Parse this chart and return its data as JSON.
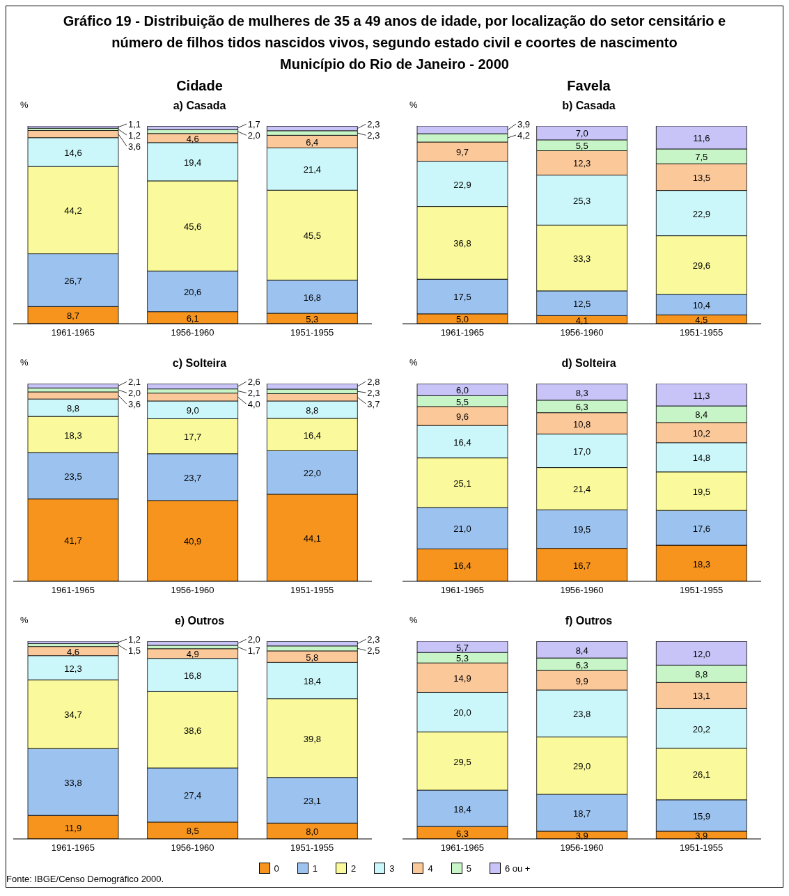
{
  "chart_data": [
    {
      "type": "bar",
      "stacked": true,
      "title": "a) Casada",
      "ylabel": "%",
      "tick_labels": "x",
      "annotations": [
        "Gráfico 19 - Distribuição de mulheres de 35 a 49 anos de idade, por localização do setor censitário e",
        "número de filhos tidos nascidos vivos, segundo estado civil e coortes de nascimento",
        "Município do Rio de Janeiro - 2000",
        "Cidade"
      ],
      "categories": [
        "1961-1965",
        "1956-1960",
        "1951-1955"
      ],
      "series": [
        {
          "color": "#f7941d",
          "values": [
            8.7,
            6.1,
            5.3
          ],
          "value_labels": [
            "8,7",
            "6,1",
            "5,3"
          ]
        },
        {
          "color": "#9cc3f0",
          "values": [
            26.7,
            20.6,
            16.8
          ],
          "value_labels": [
            "26,7",
            "20,6",
            "16,8"
          ]
        },
        {
          "color": "#fafa9c",
          "values": [
            44.2,
            45.6,
            45.5
          ],
          "value_labels": [
            "44,2",
            "45,6",
            "45,5"
          ]
        },
        {
          "color": "#ccf7fa",
          "values": [
            14.6,
            19.4,
            21.4
          ],
          "value_labels": [
            "14,6",
            "19,4",
            "21,4"
          ]
        },
        {
          "color": "#fbc89a",
          "values": [
            3.6,
            4.6,
            6.4
          ],
          "value_labels": [
            "3,6",
            "4,6",
            "6,4"
          ]
        },
        {
          "color": "#c8f5c8",
          "values": [
            1.2,
            2.0,
            2.3
          ],
          "value_labels": [
            "1,2",
            "2,0",
            "2,3"
          ]
        },
        {
          "color": "#c8c4f7",
          "values": [
            1.1,
            1.7,
            2.3
          ],
          "value_labels": [
            "1,1",
            "1,7",
            "2,3"
          ]
        }
      ]
    },
    {
      "type": "bar",
      "stacked": true,
      "title": "b) Casada",
      "ylabel": "%",
      "tick_labels": "x",
      "annotations": [
        "Favela"
      ],
      "categories": [
        "1961-1965",
        "1956-1960",
        "1951-1955"
      ],
      "series": [
        {
          "color": "#f7941d",
          "values": [
            5.0,
            4.1,
            4.5
          ],
          "value_labels": [
            "5,0",
            "4,1",
            "4,5"
          ]
        },
        {
          "color": "#9cc3f0",
          "values": [
            17.5,
            12.5,
            10.4
          ],
          "value_labels": [
            "17,5",
            "12,5",
            "10,4"
          ]
        },
        {
          "color": "#fafa9c",
          "values": [
            36.8,
            33.3,
            29.6
          ],
          "value_labels": [
            "36,8",
            "33,3",
            "29,6"
          ]
        },
        {
          "color": "#ccf7fa",
          "values": [
            22.9,
            25.3,
            22.9
          ],
          "value_labels": [
            "22,9",
            "25,3",
            "22,9"
          ]
        },
        {
          "color": "#fbc89a",
          "values": [
            9.7,
            12.3,
            13.5
          ],
          "value_labels": [
            "9,7",
            "12,3",
            "13,5"
          ]
        },
        {
          "color": "#c8f5c8",
          "values": [
            4.2,
            5.5,
            7.5
          ],
          "value_labels": [
            "4,2",
            "5,5",
            "7,5"
          ]
        },
        {
          "color": "#c8c4f7",
          "values": [
            3.9,
            7.0,
            11.6
          ],
          "value_labels": [
            "3,9",
            "7,0",
            "11,6"
          ]
        }
      ]
    },
    {
      "type": "bar",
      "stacked": true,
      "title": "c) Solteira",
      "ylabel": "%",
      "tick_labels": "x",
      "categories": [
        "1961-1965",
        "1956-1960",
        "1951-1955"
      ],
      "series": [
        {
          "color": "#f7941d",
          "values": [
            41.7,
            40.9,
            44.1
          ],
          "value_labels": [
            "41,7",
            "40,9",
            "44,1"
          ]
        },
        {
          "color": "#9cc3f0",
          "values": [
            23.5,
            23.7,
            22.0
          ],
          "value_labels": [
            "23,5",
            "23,7",
            "22,0"
          ]
        },
        {
          "color": "#fafa9c",
          "values": [
            18.3,
            17.7,
            16.4
          ],
          "value_labels": [
            "18,3",
            "17,7",
            "16,4"
          ]
        },
        {
          "color": "#ccf7fa",
          "values": [
            8.8,
            9.0,
            8.8
          ],
          "value_labels": [
            "8,8",
            "9,0",
            "8,8"
          ]
        },
        {
          "color": "#fbc89a",
          "values": [
            3.6,
            4.0,
            3.7
          ],
          "value_labels": [
            "3,6",
            "4,0",
            "3,7"
          ]
        },
        {
          "color": "#c8f5c8",
          "values": [
            2.0,
            2.1,
            2.3
          ],
          "value_labels": [
            "2,0",
            "2,1",
            "2,3"
          ]
        },
        {
          "color": "#c8c4f7",
          "values": [
            2.1,
            2.6,
            2.8
          ],
          "value_labels": [
            "2,1",
            "2,6",
            "2,8"
          ]
        }
      ]
    },
    {
      "type": "bar",
      "stacked": true,
      "title": "d) Solteira",
      "ylabel": "%",
      "tick_labels": "x",
      "categories": [
        "1961-1965",
        "1956-1960",
        "1951-1955"
      ],
      "series": [
        {
          "color": "#f7941d",
          "values": [
            16.4,
            16.7,
            18.3
          ],
          "value_labels": [
            "16,4",
            "16,7",
            "18,3"
          ]
        },
        {
          "color": "#9cc3f0",
          "values": [
            21.0,
            19.5,
            17.6
          ],
          "value_labels": [
            "21,0",
            "19,5",
            "17,6"
          ]
        },
        {
          "color": "#fafa9c",
          "values": [
            25.1,
            21.4,
            19.5
          ],
          "value_labels": [
            "25,1",
            "21,4",
            "19,5"
          ]
        },
        {
          "color": "#ccf7fa",
          "values": [
            16.4,
            17.0,
            14.8
          ],
          "value_labels": [
            "16,4",
            "17,0",
            "14,8"
          ]
        },
        {
          "color": "#fbc89a",
          "values": [
            9.6,
            10.8,
            10.2
          ],
          "value_labels": [
            "9,6",
            "10,8",
            "10,2"
          ]
        },
        {
          "color": "#c8f5c8",
          "values": [
            5.5,
            6.3,
            8.4
          ],
          "value_labels": [
            "5,5",
            "6,3",
            "8,4"
          ]
        },
        {
          "color": "#c8c4f7",
          "values": [
            6.0,
            8.3,
            11.3
          ],
          "value_labels": [
            "6,0",
            "8,3",
            "11,3"
          ]
        }
      ]
    },
    {
      "type": "bar",
      "stacked": true,
      "title": "e) Outros",
      "ylabel": "%",
      "tick_labels": "x",
      "categories": [
        "1961-1965",
        "1956-1960",
        "1951-1955"
      ],
      "series": [
        {
          "color": "#f7941d",
          "values": [
            11.9,
            8.5,
            8.0
          ],
          "value_labels": [
            "11,9",
            "8,5",
            "8,0"
          ]
        },
        {
          "color": "#9cc3f0",
          "values": [
            33.8,
            27.4,
            23.1
          ],
          "value_labels": [
            "33,8",
            "27,4",
            "23,1"
          ]
        },
        {
          "color": "#fafa9c",
          "values": [
            34.7,
            38.6,
            39.8
          ],
          "value_labels": [
            "34,7",
            "38,6",
            "39,8"
          ]
        },
        {
          "color": "#ccf7fa",
          "values": [
            12.3,
            16.8,
            18.4
          ],
          "value_labels": [
            "12,3",
            "16,8",
            "18,4"
          ]
        },
        {
          "color": "#fbc89a",
          "values": [
            4.6,
            4.9,
            5.8
          ],
          "value_labels": [
            "4,6",
            "4,9",
            "5,8"
          ]
        },
        {
          "color": "#c8f5c8",
          "values": [
            1.5,
            1.7,
            2.5
          ],
          "value_labels": [
            "1,5",
            "1,7",
            "2,5"
          ]
        },
        {
          "color": "#c8c4f7",
          "values": [
            1.2,
            2.0,
            2.3
          ],
          "value_labels": [
            "1,2",
            "2,0",
            "2,3"
          ]
        }
      ]
    },
    {
      "type": "bar",
      "stacked": true,
      "title": "f) Outros",
      "ylabel": "%",
      "tick_labels": "x",
      "legend": "bottom",
      "annotations": [
        "Fonte: IBGE/Censo Demográfico 2000."
      ],
      "categories": [
        "1961-1965",
        "1956-1960",
        "1951-1955"
      ],
      "series": [
        {
          "name": "0",
          "color": "#f7941d",
          "values": [
            6.3,
            3.9,
            3.9
          ],
          "value_labels": [
            "6,3",
            "3,9",
            "3,9"
          ]
        },
        {
          "name": "1",
          "color": "#9cc3f0",
          "values": [
            18.4,
            18.7,
            15.9
          ],
          "value_labels": [
            "18,4",
            "18,7",
            "15,9"
          ]
        },
        {
          "name": "2",
          "color": "#fafa9c",
          "values": [
            29.5,
            29.0,
            26.1
          ],
          "value_labels": [
            "29,5",
            "29,0",
            "26,1"
          ]
        },
        {
          "name": "3",
          "color": "#ccf7fa",
          "values": [
            20.0,
            23.8,
            20.2
          ],
          "value_labels": [
            "20,0",
            "23,8",
            "20,2"
          ]
        },
        {
          "name": "4",
          "color": "#fbc89a",
          "values": [
            14.9,
            9.9,
            13.1
          ],
          "value_labels": [
            "14,9",
            "9,9",
            "13,1"
          ]
        },
        {
          "name": "5",
          "color": "#c8f5c8",
          "values": [
            5.3,
            6.3,
            8.8
          ],
          "value_labels": [
            "5,3",
            "6,3",
            "8,8"
          ]
        },
        {
          "name": "6 ou +",
          "color": "#c8c4f7",
          "values": [
            5.7,
            8.4,
            12.0
          ],
          "value_labels": [
            "5,7",
            "8,4",
            "12,0"
          ]
        }
      ]
    }
  ]
}
